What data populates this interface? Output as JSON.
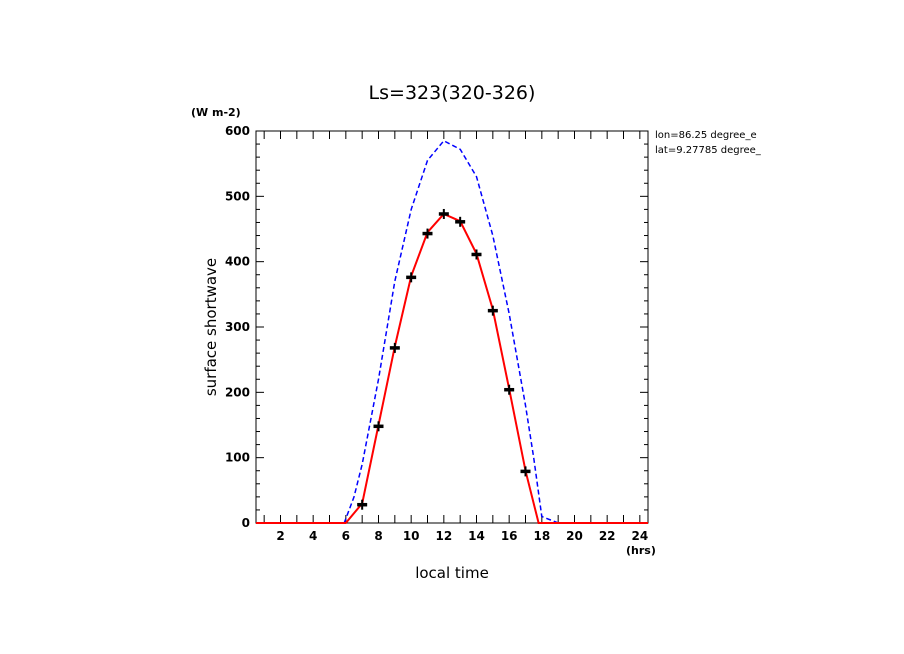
{
  "chart_data": {
    "type": "line",
    "title": "Ls=323(320-326)",
    "xlabel": "local time",
    "ylabel": "surface shortwave",
    "x_unit": "(hrs)",
    "y_unit": "(W m-2)",
    "annotations": [
      "lon=86.25 degree_e",
      "lat=9.27785 degree_"
    ],
    "xlim": [
      0.5,
      24.5
    ],
    "ylim": [
      0,
      600
    ],
    "x_ticks": [
      2,
      4,
      6,
      8,
      10,
      12,
      14,
      16,
      18,
      20,
      22,
      24
    ],
    "y_ticks": [
      0,
      100,
      200,
      300,
      400,
      500,
      600
    ],
    "grid": false,
    "series": [
      {
        "style": "dashed",
        "color": "#0000ff",
        "x": [
          0.5,
          1,
          2,
          3,
          4,
          5,
          5.9,
          6.5,
          7,
          8,
          9,
          10,
          11,
          12,
          13,
          14,
          15,
          16,
          17,
          17.5,
          18,
          19,
          20,
          21,
          22,
          23,
          24,
          24.5
        ],
        "y": [
          0,
          0,
          0,
          0,
          0,
          0,
          0,
          40,
          90,
          220,
          370,
          480,
          555,
          585,
          572,
          530,
          440,
          320,
          180,
          100,
          10,
          0,
          0,
          0,
          0,
          0,
          0,
          0
        ]
      },
      {
        "style": "solid",
        "color": "#ff0000",
        "x": [
          0.5,
          1,
          2,
          3,
          4,
          5,
          6,
          7,
          8,
          9,
          10,
          11,
          12,
          13,
          14,
          15,
          16,
          17,
          17.8,
          18,
          19,
          20,
          21,
          22,
          23,
          24,
          24.5
        ],
        "y": [
          0,
          0,
          0,
          0,
          0,
          0,
          0,
          30,
          150,
          270,
          378,
          445,
          473,
          462,
          412,
          327,
          205,
          80,
          0,
          0,
          0,
          0,
          0,
          0,
          0,
          0,
          0
        ]
      },
      {
        "style": "markers",
        "color": "#000000",
        "x": [
          7,
          8,
          9,
          10,
          11,
          12,
          13,
          14,
          15,
          16,
          17
        ],
        "y": [
          28,
          148,
          268,
          376,
          443,
          473,
          461,
          411,
          325,
          204,
          79
        ]
      }
    ]
  }
}
